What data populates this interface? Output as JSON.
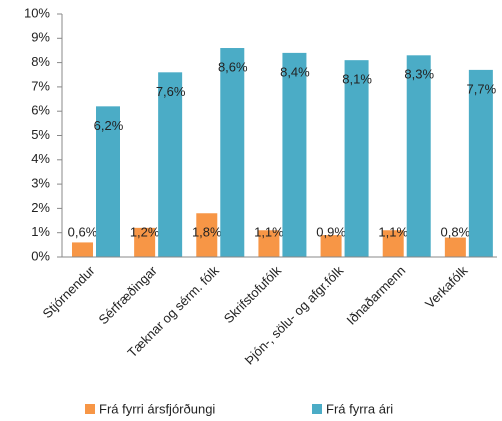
{
  "chart_data": {
    "type": "bar",
    "categories": [
      "Stjórnendur",
      "Sérfræðingar",
      "Tæknar og sérm. fólk",
      "Skrifstofufólk",
      "Þjón-, sölu- og afgr.fólk",
      "Iðnaðarmenn",
      "Verkafólk"
    ],
    "series": [
      {
        "name": "Frá fyrri ársfjórðungi",
        "color": "#f79646",
        "values": [
          0.6,
          1.2,
          1.8,
          1.1,
          0.9,
          1.1,
          0.8
        ],
        "value_labels": [
          "0,6%",
          "1,2%",
          "1,8%",
          "1,1%",
          "0,9%",
          "1,1%",
          "0,8%"
        ]
      },
      {
        "name": "Frá fyrra ári",
        "color": "#4bacc6",
        "values": [
          6.2,
          7.6,
          8.6,
          8.4,
          8.1,
          8.3,
          7.7
        ],
        "value_labels": [
          "6,2%",
          "7,6%",
          "8,6%",
          "8,4%",
          "8,1%",
          "8,3%",
          "7,7%"
        ]
      }
    ],
    "ylim": [
      0,
      10
    ],
    "yticks": [
      {
        "value": 0,
        "label": "0%"
      },
      {
        "value": 1,
        "label": "1%"
      },
      {
        "value": 2,
        "label": "2%"
      },
      {
        "value": 3,
        "label": "3%"
      },
      {
        "value": 4,
        "label": "4%"
      },
      {
        "value": 5,
        "label": "5%"
      },
      {
        "value": 6,
        "label": "6%"
      },
      {
        "value": 7,
        "label": "7%"
      },
      {
        "value": 8,
        "label": "8%"
      },
      {
        "value": 9,
        "label": "9%"
      },
      {
        "value": 10,
        "label": "10%"
      }
    ],
    "grid": false,
    "legend": "bottom"
  }
}
